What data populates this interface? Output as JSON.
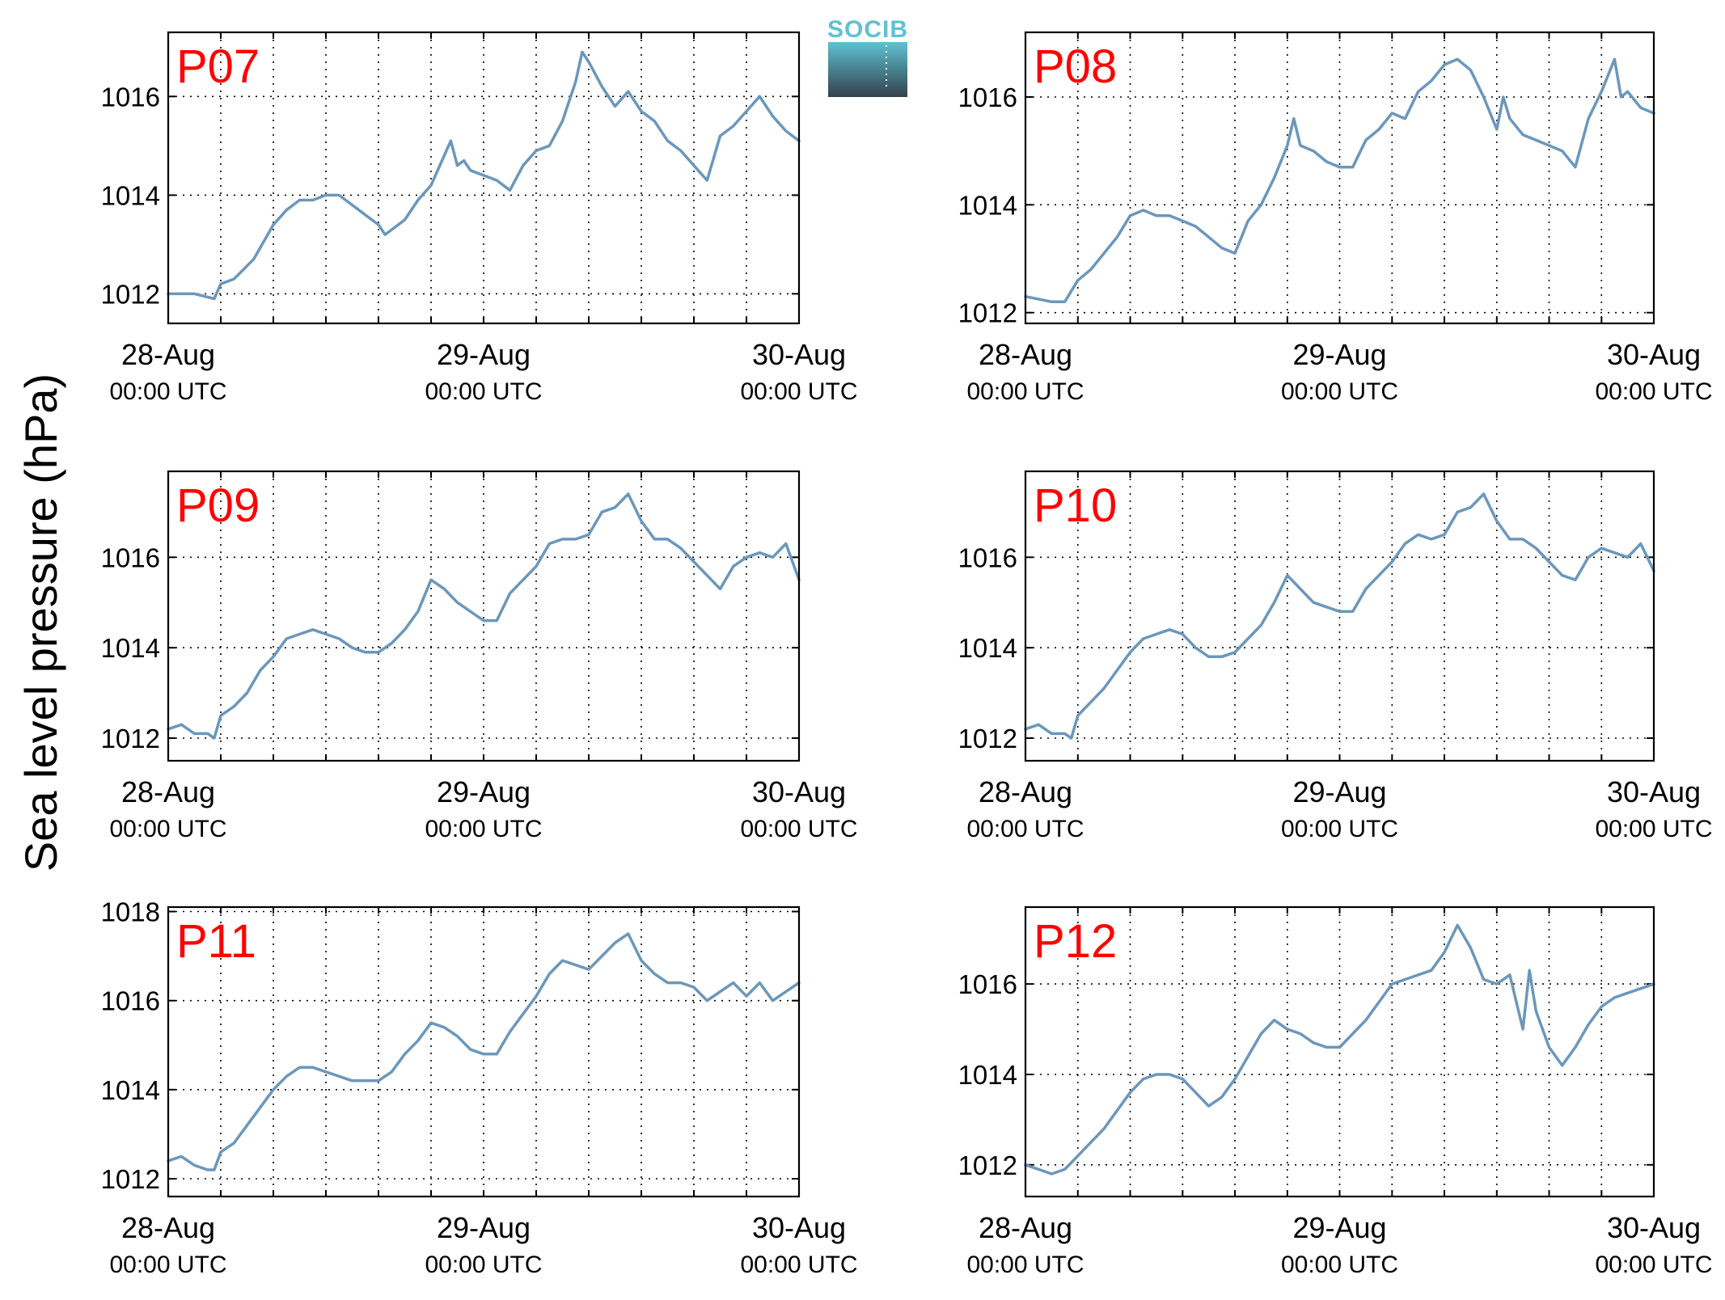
{
  "figure": {
    "ylabel": "Sea level pressure (hPa)",
    "logo_text": "SOCIB"
  },
  "colors": {
    "line": "#6b97bb",
    "panel_label": "#ff0000",
    "logo_top": "#5fc1d2",
    "logo_bottom": "#33424d"
  },
  "chart_data": [
    {
      "type": "line",
      "panel": "P07",
      "x_ticks": [
        {
          "date": "28-Aug",
          "time": "00:00 UTC"
        },
        {
          "date": "29-Aug",
          "time": "00:00 UTC"
        },
        {
          "date": "30-Aug",
          "time": "00:00 UTC"
        }
      ],
      "xlim": [
        0,
        48
      ],
      "ylim": [
        1011.4,
        1017.3
      ],
      "yticks": [
        1012,
        1014,
        1016
      ],
      "grid": true,
      "x": [
        0,
        2,
        3.5,
        4,
        5,
        6.5,
        8,
        9,
        10,
        11,
        12,
        13,
        14.5,
        16,
        16.5,
        17,
        18,
        19,
        20,
        21,
        21.5,
        22,
        22.5,
        23,
        24,
        25,
        26,
        27,
        28,
        29,
        30,
        31,
        31.5,
        32,
        33,
        34,
        35,
        36,
        37,
        38,
        39,
        40,
        41,
        42,
        42.5,
        43,
        44,
        45,
        46,
        47,
        48
      ],
      "values": [
        1012.0,
        1012.0,
        1011.9,
        1012.2,
        1012.3,
        1012.7,
        1013.4,
        1013.7,
        1013.9,
        1013.9,
        1014.0,
        1014.0,
        1013.7,
        1013.4,
        1013.2,
        1013.3,
        1013.5,
        1013.9,
        1014.2,
        1014.8,
        1015.1,
        1014.6,
        1014.7,
        1014.5,
        1014.4,
        1014.3,
        1014.1,
        1014.6,
        1014.9,
        1015.0,
        1015.5,
        1016.3,
        1016.9,
        1016.7,
        1016.2,
        1015.8,
        1016.1,
        1015.7,
        1015.5,
        1015.1,
        1014.9,
        1014.6,
        1014.3,
        1015.2,
        1015.3,
        1015.4,
        1015.7,
        1016.0,
        1015.6,
        1015.3,
        1015.1
      ]
    },
    {
      "type": "line",
      "panel": "P08",
      "x_ticks": [
        {
          "date": "28-Aug",
          "time": "00:00 UTC"
        },
        {
          "date": "29-Aug",
          "time": "00:00 UTC"
        },
        {
          "date": "30-Aug",
          "time": "00:00 UTC"
        }
      ],
      "xlim": [
        0,
        48
      ],
      "ylim": [
        1011.8,
        1017.2
      ],
      "yticks": [
        1012,
        1014,
        1016
      ],
      "grid": true,
      "x": [
        0,
        2,
        3,
        4,
        5,
        6,
        7,
        8,
        9,
        10,
        11,
        12,
        13,
        14,
        15,
        16,
        16.5,
        17,
        18,
        19,
        20,
        20.5,
        21,
        22,
        23,
        24,
        25,
        26,
        27,
        28,
        29,
        30,
        31,
        32,
        33,
        34,
        35,
        36,
        36.5,
        37,
        38,
        39,
        40,
        41,
        42,
        43,
        44,
        45,
        45.5,
        46,
        47,
        48
      ],
      "values": [
        1012.3,
        1012.2,
        1012.2,
        1012.6,
        1012.8,
        1013.1,
        1013.4,
        1013.8,
        1013.9,
        1013.8,
        1013.8,
        1013.7,
        1013.6,
        1013.4,
        1013.2,
        1013.1,
        1013.4,
        1013.7,
        1014.0,
        1014.5,
        1015.1,
        1015.6,
        1015.1,
        1015.0,
        1014.8,
        1014.7,
        1014.7,
        1015.2,
        1015.4,
        1015.7,
        1015.6,
        1016.1,
        1016.3,
        1016.6,
        1016.7,
        1016.5,
        1016.0,
        1015.4,
        1016.0,
        1015.6,
        1015.3,
        1015.2,
        1015.1,
        1015.0,
        1014.7,
        1015.6,
        1016.1,
        1016.7,
        1016.0,
        1016.1,
        1015.8,
        1015.7
      ]
    },
    {
      "type": "line",
      "panel": "P09",
      "x_ticks": [
        {
          "date": "28-Aug",
          "time": "00:00 UTC"
        },
        {
          "date": "29-Aug",
          "time": "00:00 UTC"
        },
        {
          "date": "30-Aug",
          "time": "00:00 UTC"
        }
      ],
      "xlim": [
        0,
        48
      ],
      "ylim": [
        1011.5,
        1017.9
      ],
      "yticks": [
        1012,
        1014,
        1016
      ],
      "grid": true,
      "x": [
        0,
        1,
        2,
        3,
        3.5,
        4,
        5,
        6,
        7,
        8,
        9,
        10,
        11,
        12,
        13,
        14,
        15,
        16,
        17,
        18,
        19,
        20,
        21,
        22,
        23,
        24,
        25,
        26,
        27,
        28,
        29,
        30,
        31,
        32,
        33,
        34,
        35,
        36,
        37,
        38,
        39,
        40,
        41,
        42,
        43,
        44,
        45,
        46,
        47,
        48
      ],
      "values": [
        1012.2,
        1012.3,
        1012.1,
        1012.1,
        1012.0,
        1012.5,
        1012.7,
        1013.0,
        1013.5,
        1013.8,
        1014.2,
        1014.3,
        1014.4,
        1014.3,
        1014.2,
        1014.0,
        1013.9,
        1013.9,
        1014.1,
        1014.4,
        1014.8,
        1015.5,
        1015.3,
        1015.0,
        1014.8,
        1014.6,
        1014.6,
        1015.2,
        1015.5,
        1015.8,
        1016.3,
        1016.4,
        1016.4,
        1016.5,
        1017.0,
        1017.1,
        1017.4,
        1016.8,
        1016.4,
        1016.4,
        1016.2,
        1015.9,
        1015.6,
        1015.3,
        1015.8,
        1016.0,
        1016.1,
        1016.0,
        1016.3,
        1015.5
      ]
    },
    {
      "type": "line",
      "panel": "P10",
      "x_ticks": [
        {
          "date": "28-Aug",
          "time": "00:00 UTC"
        },
        {
          "date": "29-Aug",
          "time": "00:00 UTC"
        },
        {
          "date": "30-Aug",
          "time": "00:00 UTC"
        }
      ],
      "xlim": [
        0,
        48
      ],
      "ylim": [
        1011.5,
        1017.9
      ],
      "yticks": [
        1012,
        1014,
        1016
      ],
      "grid": true,
      "x": [
        0,
        1,
        2,
        3,
        3.5,
        4,
        5,
        6,
        7,
        8,
        9,
        10,
        11,
        12,
        13,
        14,
        15,
        16,
        17,
        18,
        19,
        20,
        21,
        22,
        23,
        24,
        25,
        26,
        27,
        28,
        29,
        30,
        31,
        32,
        33,
        34,
        35,
        36,
        37,
        38,
        39,
        40,
        41,
        42,
        43,
        44,
        45,
        46,
        47,
        48
      ],
      "values": [
        1012.2,
        1012.3,
        1012.1,
        1012.1,
        1012.0,
        1012.5,
        1012.8,
        1013.1,
        1013.5,
        1013.9,
        1014.2,
        1014.3,
        1014.4,
        1014.3,
        1014.0,
        1013.8,
        1013.8,
        1013.9,
        1014.2,
        1014.5,
        1015.0,
        1015.6,
        1015.3,
        1015.0,
        1014.9,
        1014.8,
        1014.8,
        1015.3,
        1015.6,
        1015.9,
        1016.3,
        1016.5,
        1016.4,
        1016.5,
        1017.0,
        1017.1,
        1017.4,
        1016.8,
        1016.4,
        1016.4,
        1016.2,
        1015.9,
        1015.6,
        1015.5,
        1016.0,
        1016.2,
        1016.1,
        1016.0,
        1016.3,
        1015.7
      ]
    },
    {
      "type": "line",
      "panel": "P11",
      "x_ticks": [
        {
          "date": "28-Aug",
          "time": "00:00 UTC"
        },
        {
          "date": "29-Aug",
          "time": "00:00 UTC"
        },
        {
          "date": "30-Aug",
          "time": "00:00 UTC"
        }
      ],
      "xlim": [
        0,
        48
      ],
      "ylim": [
        1011.6,
        1018.1
      ],
      "yticks": [
        1012,
        1014,
        1016,
        1018
      ],
      "grid": true,
      "x": [
        0,
        1,
        2,
        3,
        3.5,
        4,
        5,
        6,
        7,
        8,
        9,
        10,
        11,
        12,
        13,
        14,
        15,
        16,
        17,
        18,
        19,
        20,
        21,
        22,
        23,
        24,
        25,
        26,
        27,
        28,
        29,
        30,
        31,
        32,
        33,
        34,
        35,
        36,
        37,
        38,
        39,
        40,
        41,
        42,
        43,
        44,
        45,
        46,
        47,
        48
      ],
      "values": [
        1012.4,
        1012.5,
        1012.3,
        1012.2,
        1012.2,
        1012.6,
        1012.8,
        1013.2,
        1013.6,
        1014.0,
        1014.3,
        1014.5,
        1014.5,
        1014.4,
        1014.3,
        1014.2,
        1014.2,
        1014.2,
        1014.4,
        1014.8,
        1015.1,
        1015.5,
        1015.4,
        1015.2,
        1014.9,
        1014.8,
        1014.8,
        1015.3,
        1015.7,
        1016.1,
        1016.6,
        1016.9,
        1016.8,
        1016.7,
        1017.0,
        1017.3,
        1017.5,
        1016.9,
        1016.6,
        1016.4,
        1016.4,
        1016.3,
        1016.0,
        1016.2,
        1016.4,
        1016.1,
        1016.4,
        1016.0,
        1016.2,
        1016.4
      ]
    },
    {
      "type": "line",
      "panel": "P12",
      "x_ticks": [
        {
          "date": "28-Aug",
          "time": "00:00 UTC"
        },
        {
          "date": "29-Aug",
          "time": "00:00 UTC"
        },
        {
          "date": "30-Aug",
          "time": "00:00 UTC"
        }
      ],
      "xlim": [
        0,
        48
      ],
      "ylim": [
        1011.3,
        1017.7
      ],
      "yticks": [
        1012,
        1014,
        1016
      ],
      "grid": true,
      "x": [
        0,
        1,
        2,
        3,
        4,
        5,
        6,
        7,
        8,
        9,
        10,
        11,
        12,
        13,
        14,
        15,
        16,
        17,
        18,
        19,
        20,
        21,
        22,
        23,
        24,
        25,
        26,
        27,
        28,
        29,
        30,
        31,
        32,
        33,
        34,
        35,
        36,
        37,
        38,
        38.5,
        39,
        40,
        41,
        42,
        43,
        44,
        45,
        46,
        47,
        48
      ],
      "values": [
        1012.0,
        1011.9,
        1011.8,
        1011.9,
        1012.2,
        1012.5,
        1012.8,
        1013.2,
        1013.6,
        1013.9,
        1014.0,
        1014.0,
        1013.9,
        1013.6,
        1013.3,
        1013.5,
        1013.9,
        1014.4,
        1014.9,
        1015.2,
        1015.0,
        1014.9,
        1014.7,
        1014.6,
        1014.6,
        1014.9,
        1015.2,
        1015.6,
        1016.0,
        1016.1,
        1016.2,
        1016.3,
        1016.7,
        1017.3,
        1016.8,
        1016.1,
        1016.0,
        1016.2,
        1015.0,
        1016.3,
        1015.4,
        1014.6,
        1014.2,
        1014.6,
        1015.1,
        1015.5,
        1015.7,
        1015.8,
        1015.9,
        1016.0
      ]
    }
  ]
}
